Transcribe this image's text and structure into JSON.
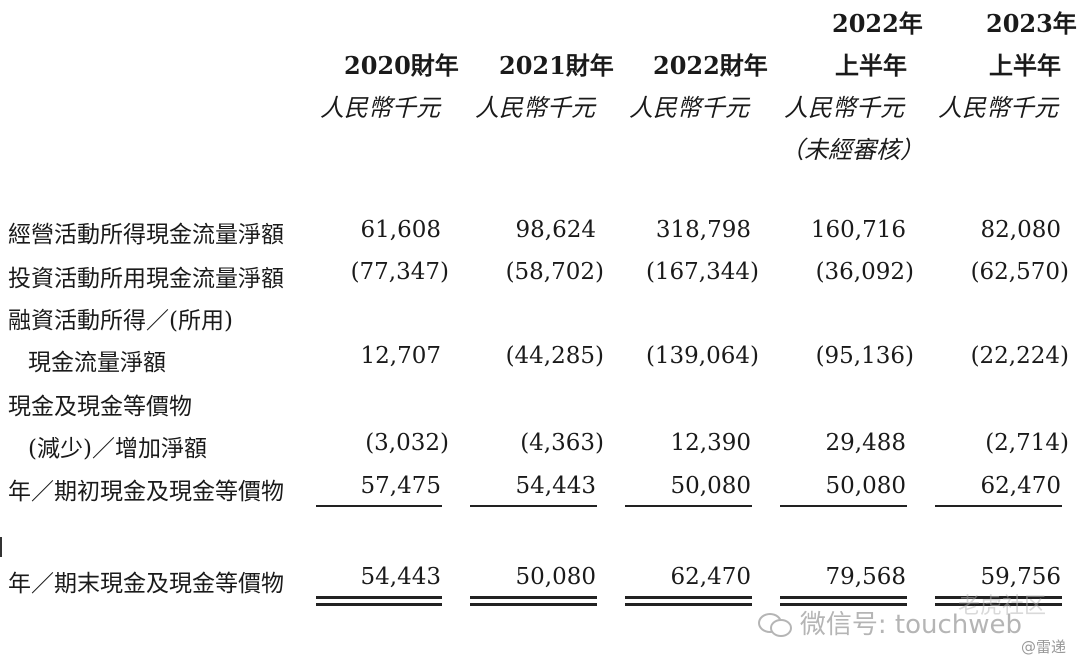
{
  "header": {
    "columns": [
      {
        "year_line1": "",
        "year_line2": "2020財年",
        "unit": "人民幣千元",
        "note": ""
      },
      {
        "year_line1": "",
        "year_line2": "2021財年",
        "unit": "人民幣千元",
        "note": ""
      },
      {
        "year_line1": "",
        "year_line2": "2022財年",
        "unit": "人民幣千元",
        "note": ""
      },
      {
        "year_line1": "2022年",
        "year_line2": "上半年",
        "unit": "人民幣千元",
        "note": "（未經審核）"
      },
      {
        "year_line1": "2023年",
        "year_line2": "上半年",
        "unit": "人民幣千元",
        "note": ""
      }
    ]
  },
  "rows": [
    {
      "label": "經營活動所得現金流量淨額",
      "values": [
        "61,608",
        "98,624",
        "318,798",
        "160,716",
        "82,080"
      ]
    },
    {
      "label": "投資活動所用現金流量淨額",
      "values": [
        "(77,347)",
        "(58,702)",
        "(167,344)",
        "(36,092)",
        "(62,570)"
      ]
    },
    {
      "label": "融資活動所得／(所用)",
      "values": [
        "",
        "",
        "",
        "",
        ""
      ]
    },
    {
      "label": "現金流量淨額",
      "values": [
        "12,707",
        "(44,285)",
        "(139,064)",
        "(95,136)",
        "(22,224)"
      ]
    },
    {
      "label": "現金及現金等價物",
      "values": [
        "",
        "",
        "",
        "",
        ""
      ]
    },
    {
      "label": "(減少)／增加淨額",
      "values": [
        "(3,032)",
        "(4,363)",
        "12,390",
        "29,488",
        "(2,714)"
      ]
    },
    {
      "label": "年／期初現金及現金等價物",
      "values": [
        "57,475",
        "54,443",
        "50,080",
        "50,080",
        "62,470"
      ]
    },
    {
      "label": "年／期末現金及現金等價物",
      "values": [
        "54,443",
        "50,080",
        "62,470",
        "79,568",
        "59,756"
      ]
    }
  ],
  "watermark": {
    "text": "微信号: touchweb",
    "overlay": "老虎社区",
    "source": "@雷递"
  }
}
